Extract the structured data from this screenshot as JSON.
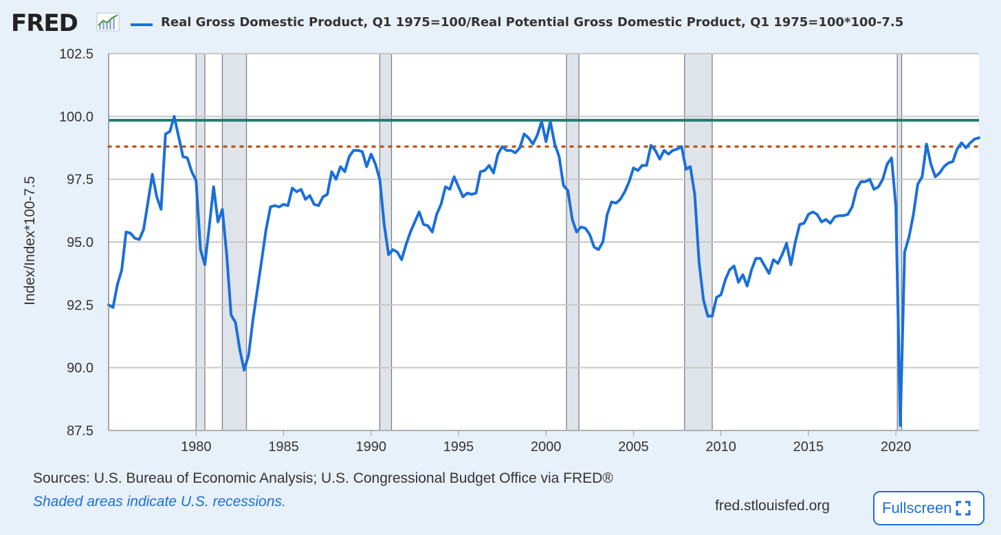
{
  "header": {
    "logo_text": "FRED",
    "logo_icon": "chart-trend-icon",
    "legend_label": "Real Gross Domestic Product, Q1 1975=100/Real Potential Gross Domestic Product, Q1 1975=100*100-7.5"
  },
  "footer": {
    "sources": "Sources: U.S. Bureau of Economic Analysis; U.S. Congressional Budget Office via FRED®",
    "note": "Shaded areas indicate U.S. recessions.",
    "site": "fred.stlouisfed.org",
    "fullscreen_label": "Fullscreen",
    "fullscreen_icon": "expand-icon"
  },
  "colors": {
    "series": "#1a6fd8",
    "reference_solid": "#1e7d72",
    "reference_dotted": "#c0561a",
    "recession": "#dfe4ea",
    "background": "#e8f0fa"
  },
  "chart_data": {
    "type": "line",
    "title": "",
    "xlabel": "",
    "ylabel": "Index/Index*100-7.5",
    "xlim": [
      1975.0,
      2024.75
    ],
    "ylim": [
      87.5,
      102.5
    ],
    "xticks": [
      1980,
      1985,
      1990,
      1995,
      2000,
      2005,
      2010,
      2015,
      2020
    ],
    "yticks": [
      "87.5",
      "90.0",
      "92.5",
      "95.0",
      "97.5",
      "100.0",
      "102.5"
    ],
    "grid": true,
    "legend": "top",
    "recessions": [
      [
        1980.0,
        1980.5
      ],
      [
        1981.5,
        1982.88
      ],
      [
        1990.5,
        1991.17
      ],
      [
        2001.17,
        2001.88
      ],
      [
        2007.92,
        2009.5
      ],
      [
        2020.08,
        2020.33
      ]
    ],
    "reference_lines": [
      {
        "value": 99.85,
        "style": "solid"
      },
      {
        "value": 98.8,
        "style": "dotted"
      }
    ],
    "series": [
      {
        "name": "Real Gross Domestic Product, Q1 1975=100/Real Potential Gross Domestic Product, Q1 1975=100*100-7.5",
        "x": [
          1975.0,
          1975.25,
          1975.5,
          1975.75,
          1976.0,
          1976.25,
          1976.5,
          1976.75,
          1977.0,
          1977.25,
          1977.5,
          1977.75,
          1978.0,
          1978.25,
          1978.5,
          1978.75,
          1979.0,
          1979.25,
          1979.5,
          1979.75,
          1980.0,
          1980.25,
          1980.5,
          1980.75,
          1981.0,
          1981.25,
          1981.5,
          1981.75,
          1982.0,
          1982.25,
          1982.5,
          1982.75,
          1983.0,
          1983.25,
          1983.5,
          1983.75,
          1984.0,
          1984.25,
          1984.5,
          1984.75,
          1985.0,
          1985.25,
          1985.5,
          1985.75,
          1986.0,
          1986.25,
          1986.5,
          1986.75,
          1987.0,
          1987.25,
          1987.5,
          1987.75,
          1988.0,
          1988.25,
          1988.5,
          1988.75,
          1989.0,
          1989.25,
          1989.5,
          1989.75,
          1990.0,
          1990.25,
          1990.5,
          1990.75,
          1991.0,
          1991.25,
          1991.5,
          1991.75,
          1992.0,
          1992.25,
          1992.5,
          1992.75,
          1993.0,
          1993.25,
          1993.5,
          1993.75,
          1994.0,
          1994.25,
          1994.5,
          1994.75,
          1995.0,
          1995.25,
          1995.5,
          1995.75,
          1996.0,
          1996.25,
          1996.5,
          1996.75,
          1997.0,
          1997.25,
          1997.5,
          1997.75,
          1998.0,
          1998.25,
          1998.5,
          1998.75,
          1999.0,
          1999.25,
          1999.5,
          1999.75,
          2000.0,
          2000.25,
          2000.5,
          2000.75,
          2001.0,
          2001.25,
          2001.5,
          2001.75,
          2002.0,
          2002.25,
          2002.5,
          2002.75,
          2003.0,
          2003.25,
          2003.5,
          2003.75,
          2004.0,
          2004.25,
          2004.5,
          2004.75,
          2005.0,
          2005.25,
          2005.5,
          2005.75,
          2006.0,
          2006.25,
          2006.5,
          2006.75,
          2007.0,
          2007.25,
          2007.5,
          2007.75,
          2008.0,
          2008.25,
          2008.5,
          2008.75,
          2009.0,
          2009.25,
          2009.5,
          2009.75,
          2010.0,
          2010.25,
          2010.5,
          2010.75,
          2011.0,
          2011.25,
          2011.5,
          2011.75,
          2012.0,
          2012.25,
          2012.5,
          2012.75,
          2013.0,
          2013.25,
          2013.5,
          2013.75,
          2014.0,
          2014.25,
          2014.5,
          2014.75,
          2015.0,
          2015.25,
          2015.5,
          2015.75,
          2016.0,
          2016.25,
          2016.5,
          2016.75,
          2017.0,
          2017.25,
          2017.5,
          2017.75,
          2018.0,
          2018.25,
          2018.5,
          2018.75,
          2019.0,
          2019.25,
          2019.5,
          2019.75,
          2020.0,
          2020.25,
          2020.5,
          2020.75,
          2021.0,
          2021.25,
          2021.5,
          2021.75,
          2022.0,
          2022.25,
          2022.5,
          2022.75,
          2023.0,
          2023.25,
          2023.5,
          2023.75,
          2024.0,
          2024.25,
          2024.5,
          2024.75
        ],
        "y": [
          92.5,
          92.4,
          93.3,
          93.9,
          95.4,
          95.35,
          95.15,
          95.1,
          95.5,
          96.6,
          97.7,
          96.8,
          96.3,
          99.3,
          99.4,
          100.0,
          99.2,
          98.4,
          98.35,
          97.8,
          97.45,
          94.7,
          94.1,
          95.6,
          97.2,
          95.8,
          96.3,
          94.5,
          92.1,
          91.8,
          90.7,
          89.9,
          90.5,
          91.9,
          93.1,
          94.3,
          95.5,
          96.4,
          96.45,
          96.4,
          96.5,
          96.45,
          97.15,
          97.0,
          97.1,
          96.7,
          96.85,
          96.5,
          96.45,
          96.8,
          96.9,
          97.8,
          97.5,
          98.0,
          97.8,
          98.4,
          98.65,
          98.65,
          98.6,
          98.0,
          98.5,
          98.1,
          97.5,
          95.7,
          94.5,
          94.7,
          94.6,
          94.3,
          94.9,
          95.4,
          95.8,
          96.2,
          95.7,
          95.65,
          95.4,
          96.1,
          96.5,
          97.2,
          97.1,
          97.6,
          97.2,
          96.8,
          96.95,
          96.9,
          96.95,
          97.8,
          97.85,
          98.05,
          97.75,
          98.5,
          98.8,
          98.65,
          98.65,
          98.55,
          98.75,
          99.3,
          99.15,
          98.9,
          99.25,
          99.8,
          99.0,
          99.8,
          98.9,
          98.4,
          97.25,
          97.05,
          95.9,
          95.4,
          95.6,
          95.55,
          95.3,
          94.8,
          94.7,
          95.0,
          96.1,
          96.6,
          96.55,
          96.7,
          97.0,
          97.4,
          97.95,
          97.85,
          98.05,
          98.05,
          98.85,
          98.65,
          98.3,
          98.65,
          98.5,
          98.65,
          98.7,
          98.8,
          97.9,
          98.0,
          96.9,
          94.2,
          92.7,
          92.05,
          92.05,
          92.8,
          92.9,
          93.5,
          93.9,
          94.05,
          93.4,
          93.7,
          93.25,
          93.9,
          94.35,
          94.35,
          94.05,
          93.75,
          94.3,
          94.15,
          94.5,
          94.95,
          94.1,
          95.0,
          95.7,
          95.75,
          96.1,
          96.2,
          96.1,
          95.8,
          95.9,
          95.75,
          96.0,
          96.05,
          96.05,
          96.1,
          96.4,
          97.1,
          97.4,
          97.4,
          97.5,
          97.1,
          97.2,
          97.5,
          98.1,
          98.35,
          96.4,
          87.7,
          94.6,
          95.2,
          96.1,
          97.3,
          97.6,
          98.9,
          98.1,
          97.6,
          97.75,
          98.0,
          98.15,
          98.2,
          98.7,
          98.95,
          98.75,
          98.95,
          99.1,
          99.15
        ]
      }
    ]
  }
}
